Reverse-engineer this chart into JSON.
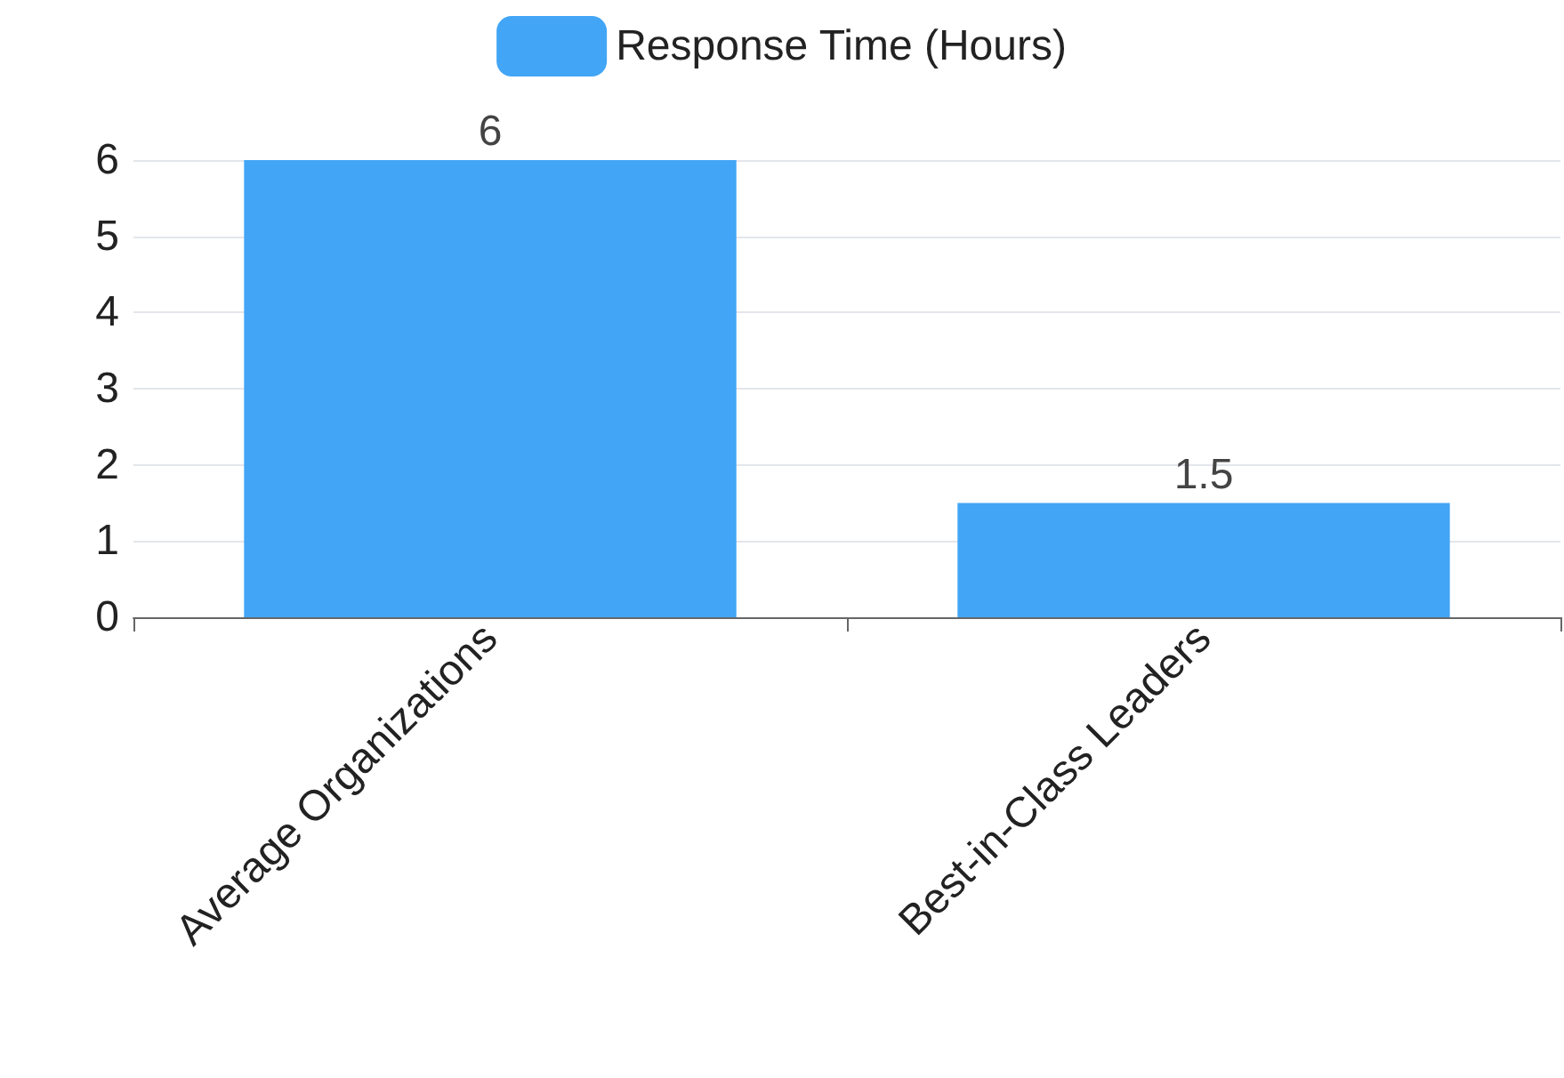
{
  "chart_data": {
    "type": "bar",
    "categories": [
      "Average Organizations",
      "Best-in-Class Leaders"
    ],
    "series": [
      {
        "name": "Response Time (Hours)",
        "color": "#42a5f5",
        "values": [
          6,
          1.5
        ]
      }
    ],
    "ylim": [
      0,
      6
    ],
    "yticks": [
      0,
      1,
      2,
      3,
      4,
      5,
      6
    ],
    "grid": "y",
    "legend": "top",
    "data_labels": true
  }
}
